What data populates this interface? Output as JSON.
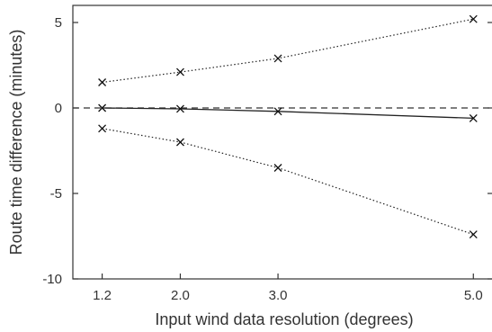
{
  "chart_data": {
    "type": "line",
    "title": "",
    "xlabel": "Input wind data resolution (degrees)",
    "ylabel": "Route time difference (minutes)",
    "x": [
      1.2,
      2.0,
      3.0,
      5.0
    ],
    "x_tick_labels": [
      "1.2",
      "2.0",
      "3.0",
      "5.0"
    ],
    "xlim": [
      0.9,
      5.2
    ],
    "ylim": [
      -10,
      6
    ],
    "y_ticks": [
      5,
      0,
      -5,
      -10
    ],
    "y_tick_labels": [
      "5",
      "0",
      "-5",
      "-10"
    ],
    "grid": false,
    "reference_line": {
      "y": 0,
      "style": "dashed"
    },
    "series": [
      {
        "style": "dotted",
        "marker": "x",
        "values": [
          1.5,
          2.1,
          2.9,
          5.2
        ]
      },
      {
        "style": "solid",
        "marker": "x",
        "values": [
          0.0,
          -0.05,
          -0.2,
          -0.6
        ]
      },
      {
        "style": "dotted",
        "marker": "x",
        "values": [
          -1.2,
          -2.0,
          -3.5,
          -7.4
        ]
      }
    ]
  }
}
